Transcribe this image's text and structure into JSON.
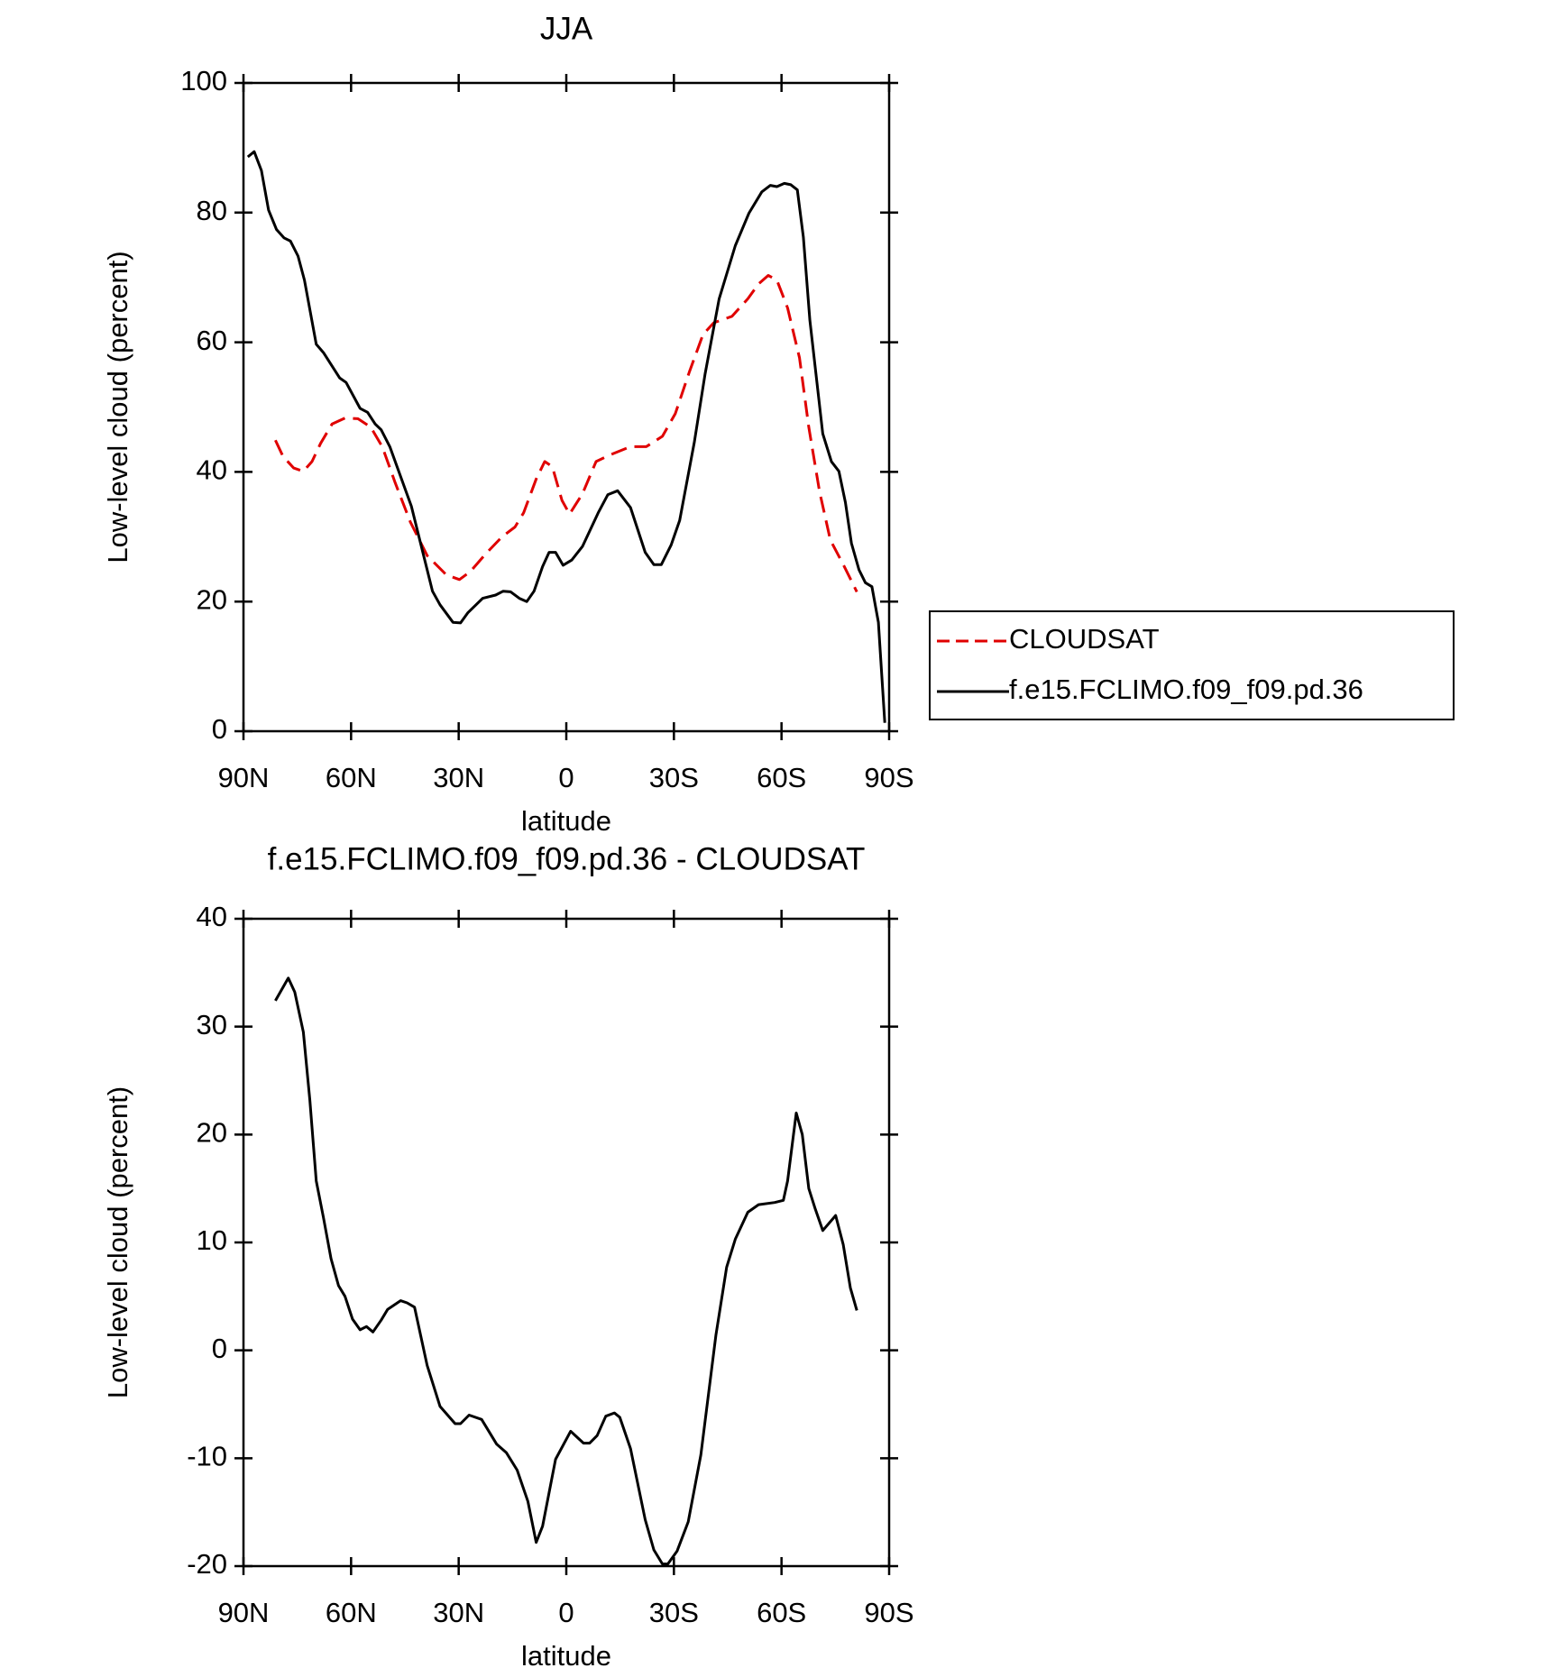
{
  "chart_data": [
    {
      "type": "line",
      "title": "JJA",
      "xlabel": "latitude",
      "ylabel": "Low-level cloud (percent)",
      "xlim": [
        90,
        -90
      ],
      "xticks": [
        {
          "value": 90,
          "label": "90N"
        },
        {
          "value": 60,
          "label": "60N"
        },
        {
          "value": 30,
          "label": "30N"
        },
        0,
        {
          "value": -30,
          "label": "30S"
        },
        {
          "value": -60,
          "label": "60S"
        },
        {
          "value": -90,
          "label": "90S"
        }
      ],
      "ylim": [
        0,
        100
      ],
      "yticks": [
        0,
        20,
        40,
        60,
        80,
        100
      ],
      "legend_position": "right",
      "series": [
        {
          "name": "CLOUDSAT",
          "color": "#e00000",
          "style": "dashed",
          "x": [
            81.1,
            79,
            76,
            73.3,
            70.9,
            68.5,
            65.3,
            61.7,
            58.1,
            54.5,
            51.3,
            47.7,
            43.5,
            38.8,
            33.4,
            29.8,
            26.8,
            22.4,
            17.9,
            14.3,
            11.9,
            8.4,
            6,
            3.9,
            1.2,
            -0.9,
            -4.5,
            -8.3,
            -12.5,
            -17.9,
            -22.3,
            -26.8,
            -30.4,
            -34.3,
            -38.1,
            -41.1,
            -46.2,
            -50.6,
            -53.6,
            -56.3,
            -58.7,
            -61.7,
            -65,
            -67.6,
            -70.6,
            -73.6,
            -77.5,
            -81
          ],
          "values": [
            44.9,
            42.4,
            40.6,
            40.1,
            41.6,
            44.4,
            47.4,
            48.3,
            48.2,
            46.9,
            43.9,
            38.3,
            32.3,
            27.1,
            24.1,
            23.4,
            24.6,
            27.4,
            30,
            31.5,
            33.7,
            38.9,
            41.6,
            40.8,
            35.6,
            33.5,
            36.6,
            41.6,
            42.7,
            43.9,
            43.9,
            45.5,
            49,
            55.4,
            61.2,
            63,
            64,
            66.7,
            69,
            70.3,
            69.6,
            65.3,
            57.6,
            46.9,
            37,
            29.5,
            25.4,
            21.5
          ]
        },
        {
          "name": "f.e15.FCLIMO.f09_f09.pd.36",
          "color": "#000000",
          "style": "solid",
          "x": [
            88.8,
            87,
            85,
            83,
            80.8,
            78.7,
            76.9,
            74.8,
            73,
            69.7,
            67.7,
            63.2,
            61.4,
            57.5,
            55.4,
            53.3,
            51.6,
            49.2,
            43.2,
            37.3,
            35.2,
            31.6,
            29.5,
            27.4,
            23.3,
            19.7,
            17.6,
            15.5,
            13.1,
            11,
            9,
            6.6,
            4.8,
            3,
            0.9,
            -1.5,
            -4.5,
            -8.9,
            -11.6,
            -14.3,
            -17.9,
            -22,
            -24.4,
            -26.5,
            -29.2,
            -31.6,
            -35.7,
            -38.7,
            -42.6,
            -47.1,
            -50.9,
            -54.5,
            -56.9,
            -58.7,
            -60.8,
            -62.6,
            -64.4,
            -66.1,
            -67.9,
            -71.5,
            -73.9,
            -76,
            -77.8,
            -79.5,
            -81.6,
            -83.4,
            -85.2,
            -87,
            -88.8
          ],
          "values": [
            88.6,
            89.4,
            86.5,
            80.4,
            77.4,
            76.1,
            75.6,
            73.3,
            69.6,
            59.7,
            58.4,
            54.5,
            53.8,
            49.8,
            49.2,
            47.4,
            46.5,
            43.9,
            34.7,
            21.6,
            19.5,
            16.8,
            16.7,
            18.3,
            20.5,
            21,
            21.6,
            21.5,
            20.5,
            20,
            21.6,
            25.4,
            27.6,
            27.6,
            25.6,
            26.4,
            28.5,
            33.7,
            36.5,
            37.1,
            34.5,
            27.6,
            25.7,
            25.7,
            28.7,
            32.5,
            44.6,
            55.1,
            66.7,
            74.9,
            79.9,
            83.2,
            84.2,
            84,
            84.5,
            84.3,
            83.5,
            76.2,
            63.4,
            45.9,
            41.6,
            40.1,
            35.3,
            29,
            24.9,
            22.9,
            22.3,
            16.8,
            1.3
          ]
        }
      ]
    },
    {
      "type": "line",
      "title": "f.e15.FCLIMO.f09_f09.pd.36 - CLOUDSAT",
      "xlabel": "latitude",
      "ylabel": "Low-level cloud (percent)",
      "xlim": [
        90,
        -90
      ],
      "xticks": [
        {
          "value": 90,
          "label": "90N"
        },
        {
          "value": 60,
          "label": "60N"
        },
        {
          "value": 30,
          "label": "30N"
        },
        0,
        {
          "value": -30,
          "label": "30S"
        },
        {
          "value": -60,
          "label": "60S"
        },
        {
          "value": -90,
          "label": "90S"
        }
      ],
      "ylim": [
        -20,
        40
      ],
      "yticks": [
        -20,
        -10,
        0,
        10,
        20,
        30,
        40
      ],
      "series": [
        {
          "color": "#000000",
          "style": "solid",
          "x": [
            81.1,
            77.5,
            75.7,
            73.3,
            71.5,
            69.7,
            67.7,
            65.6,
            63.5,
            61.7,
            59.6,
            57.5,
            55.7,
            53.9,
            51.6,
            49.8,
            46.2,
            44.4,
            42.3,
            38.8,
            35.2,
            31,
            29.5,
            27.1,
            23.6,
            19.4,
            16.7,
            13.7,
            10.7,
            8.4,
            6.6,
            3,
            -1.2,
            -4.8,
            -6.5,
            -8.6,
            -11,
            -13.4,
            -14.9,
            -17.9,
            -22,
            -24.4,
            -26.8,
            -28.3,
            -30.9,
            -34,
            -37.5,
            -41.7,
            -44.7,
            -47.1,
            -50.6,
            -53.6,
            -58.1,
            -60.5,
            -61.7,
            -64.1,
            -65.8,
            -67.6,
            -69.4,
            -71.5,
            -75.1,
            -77.2,
            -79.2,
            -81
          ],
          "values": [
            32.4,
            34.5,
            33.2,
            29.5,
            23.2,
            15.7,
            12.3,
            8.5,
            6,
            5,
            2.9,
            1.9,
            2.2,
            1.7,
            2.8,
            3.8,
            4.6,
            4.4,
            4,
            -1.4,
            -5.2,
            -6.8,
            -6.8,
            -6,
            -6.4,
            -8.7,
            -9.5,
            -11.1,
            -14,
            -17.8,
            -16.3,
            -10.1,
            -7.5,
            -8.6,
            -8.6,
            -7.9,
            -6.1,
            -5.8,
            -6.2,
            -9.1,
            -15.7,
            -18.5,
            -19.8,
            -19.8,
            -18.6,
            -15.9,
            -9.7,
            1.4,
            7.7,
            10.3,
            12.8,
            13.5,
            13.7,
            13.9,
            15.7,
            22,
            20,
            15,
            13.1,
            11.1,
            12.5,
            9.8,
            5.8,
            3.7
          ]
        }
      ]
    }
  ]
}
